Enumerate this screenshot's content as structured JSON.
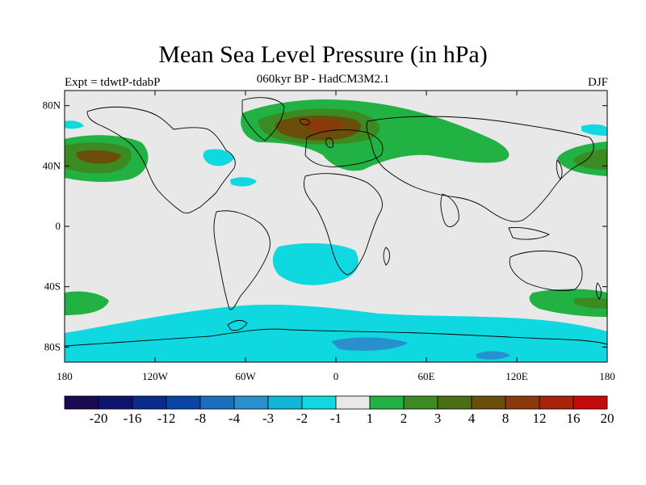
{
  "header": {
    "title": "Mean Sea Level Pressure (in hPa)",
    "subtitle": "060kyr BP - HadCM3M2.1",
    "left_label": "Expt = tdwtP-tdabP",
    "right_label": "DJF"
  },
  "axes": {
    "lat_ticks": [
      {
        "label": "80N",
        "value": 80
      },
      {
        "label": "40N",
        "value": 40
      },
      {
        "label": "0",
        "value": 0
      },
      {
        "label": "40S",
        "value": -40
      },
      {
        "label": "80S",
        "value": -80
      }
    ],
    "lon_ticks": [
      {
        "label": "180",
        "value": -180
      },
      {
        "label": "120W",
        "value": -120
      },
      {
        "label": "60W",
        "value": -60
      },
      {
        "label": "0",
        "value": 0
      },
      {
        "label": "60E",
        "value": 60
      },
      {
        "label": "120E",
        "value": 120
      },
      {
        "label": "180",
        "value": 180
      }
    ]
  },
  "colorbar": {
    "colors": [
      "#1a0a52",
      "#0d1470",
      "#0a2a8c",
      "#0a44a6",
      "#1a6ebe",
      "#2890cc",
      "#10b6d6",
      "#10d8e0",
      "#e8e8e8",
      "#22b244",
      "#3c8a22",
      "#4a6e14",
      "#6a4e0a",
      "#8a3a0a",
      "#a82408",
      "#c40a0a"
    ],
    "labels": [
      "-20",
      "-16",
      "-12",
      "-8",
      "-4",
      "-3",
      "-2",
      "-1",
      "1",
      "2",
      "3",
      "4",
      "8",
      "12",
      "16",
      "20"
    ]
  },
  "map": {
    "ocean_color": "#e8e8e8",
    "coast_color": "#000000"
  }
}
